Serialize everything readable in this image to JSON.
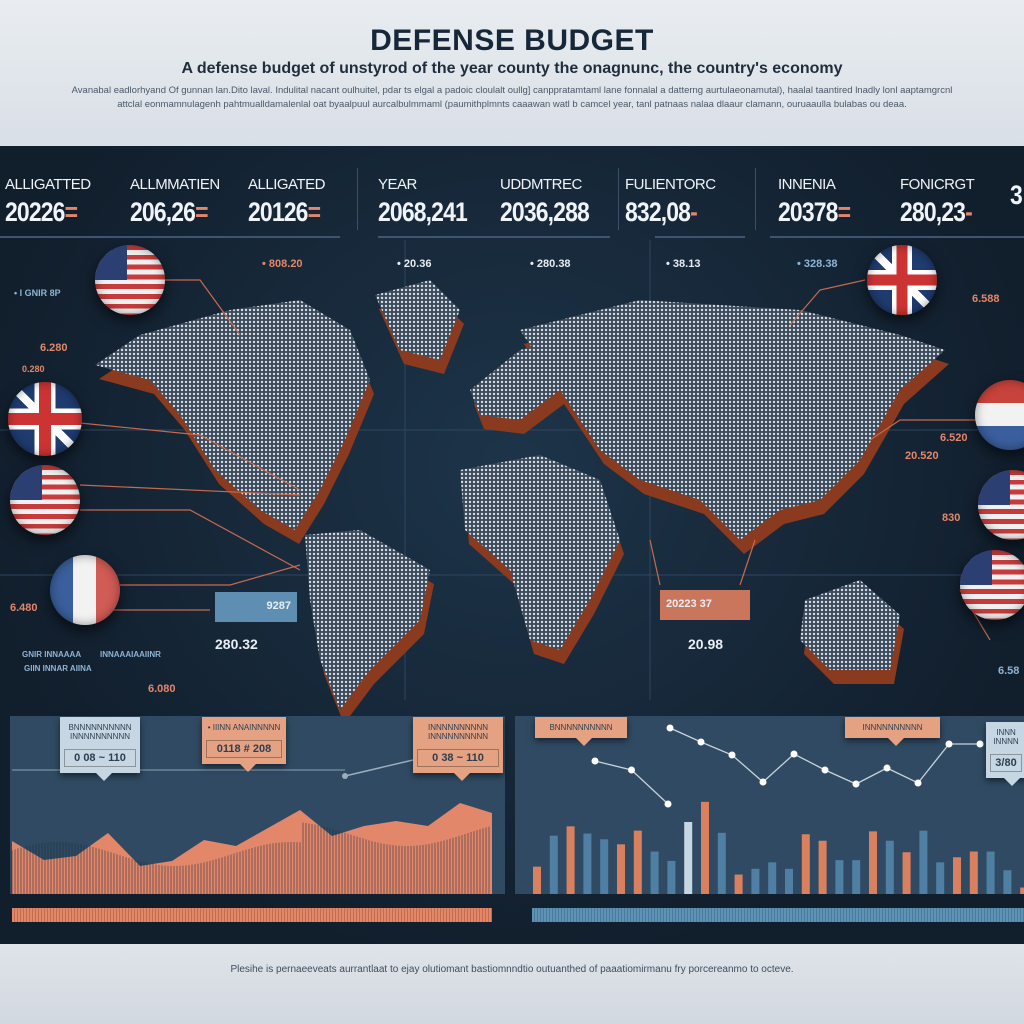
{
  "header": {
    "title": "DEFENSE BUDGET",
    "subtitle": "A defense budget of unstyrod of the year county the onagnunc, the country's economy",
    "paragraph": "Avanabal eadlorhyand Of gunnan lan.Dito laval. Indulital nacant oulhuitel, pdar ts elgal a padoic cloulalt oullg] canppratamtaml lane fonnalal a datterng aurtulaeonamutal), haalal taantired lnadly lonl aaptamgrcnl attclal eonmamnulagenh pahtmualldamalenlal oat byaalpuul aurcalbulmmaml (paumithplmnts caaawan watl b camcel year, tanl patnaas nalaa dlaaur clamann, ouruaaulla bulabas ou deaa."
  },
  "stats": [
    {
      "label": "ALLIGATTED",
      "value": "20226",
      "mark": "="
    },
    {
      "label": "ALLMMATIEN",
      "value": "206,26",
      "mark": "="
    },
    {
      "label": "ALLIGATED",
      "value": "20126",
      "mark": "="
    },
    {
      "label": "YEAR",
      "value": "2068,241",
      "mark": ""
    },
    {
      "label": "UDDMTREC",
      "value": "2036,288",
      "mark": ""
    },
    {
      "label": "FULIENTORC",
      "value": "832,08",
      "mark": "-"
    },
    {
      "label": "INNENIA",
      "value": "20378",
      "mark": "="
    },
    {
      "label": "FONICRGT",
      "value": "280,23",
      "mark": "-"
    },
    {
      "label": "",
      "value": "3",
      "mark": ""
    }
  ],
  "map_labels": {
    "top1": "• 808.20",
    "top2": "• 20.36",
    "top3": "• 280.38",
    "top4": "• 38.13",
    "top5": "• 328.38",
    "left1": "• I GNIR 8P",
    "left2": "6.280",
    "left3": "0.280",
    "left4": "6.480",
    "left5": "6.080",
    "left_legend1": "GNIR INNAAAA",
    "left_legend2": "INNAAAIAAIINR",
    "left_legend3": "GIIN INNAR AIINA",
    "right1": "6.588",
    "right2": "6.520",
    "right3": "20.520",
    "right4": "830",
    "right5": "6.58",
    "box1": "9287",
    "value1": "280.32",
    "box2": "20223  37",
    "value2": "20.98"
  },
  "flags": {
    "left": [
      "us-flag",
      "uk-flag",
      "us-flag",
      "france-flag"
    ],
    "right": [
      "uk-flag",
      "netherlands-flag",
      "us-flag",
      "us-flag"
    ]
  },
  "callouts": {
    "left": [
      {
        "text": "BNNNNNNNNNN INNNNNNNNNN",
        "value": "0 08 ~ 110"
      },
      {
        "text": "• IIINN ANAINNNNN",
        "value": "0118 # 208"
      },
      {
        "text": "INNNNNNNNNN INNNNNNNNNN",
        "value": "0 38 ~ 110"
      }
    ],
    "right": [
      {
        "text": "BNNNNNNNNNN"
      },
      {
        "text": "INNNNNNNNNN"
      },
      {
        "text": "INNN INNNN",
        "value": "3/80"
      }
    ]
  },
  "footer": {
    "text": "Plesihe is pernaeeveats aurrantlaat to ejay olutiomant bastiomnndtio outuanthed of paaatiomirmanu fry porcereanmo to octeve."
  },
  "colors": {
    "orange": "#e3876a",
    "blue": "#4f7fa3",
    "light_blue": "#c6d6e2",
    "background": "#142233",
    "panel": "#2f4a62"
  },
  "chart_data": [
    {
      "type": "area",
      "title": "",
      "values": [
        53,
        34,
        38,
        61,
        28,
        33,
        54,
        48,
        66,
        84,
        58,
        68,
        73,
        68,
        91,
        81
      ],
      "color": "#e3876a",
      "grid": false
    },
    {
      "type": "bar",
      "title": "",
      "values": [
        38,
        81,
        94,
        84,
        76,
        69,
        88,
        59,
        46,
        100,
        128,
        85,
        27,
        35,
        44,
        35,
        83,
        74,
        47,
        47,
        87,
        74,
        58,
        88,
        44,
        51,
        59,
        59,
        33,
        9
      ],
      "colors": [
        "o",
        "b",
        "o",
        "b",
        "b",
        "o",
        "o",
        "b",
        "b",
        "l",
        "o",
        "b",
        "o",
        "b",
        "b",
        "b",
        "o",
        "o",
        "b",
        "b",
        "o",
        "b",
        "o",
        "b",
        "b",
        "o",
        "o",
        "b",
        "b",
        "o"
      ],
      "ylim": [
        0,
        180
      ],
      "grid": false
    },
    {
      "type": "line",
      "title": "",
      "series": [
        {
          "values": [
            133,
            124,
            90
          ]
        },
        {
          "values": [
            166,
            152,
            139,
            112,
            140,
            124,
            110,
            126,
            111,
            150,
            150
          ]
        }
      ]
    }
  ]
}
